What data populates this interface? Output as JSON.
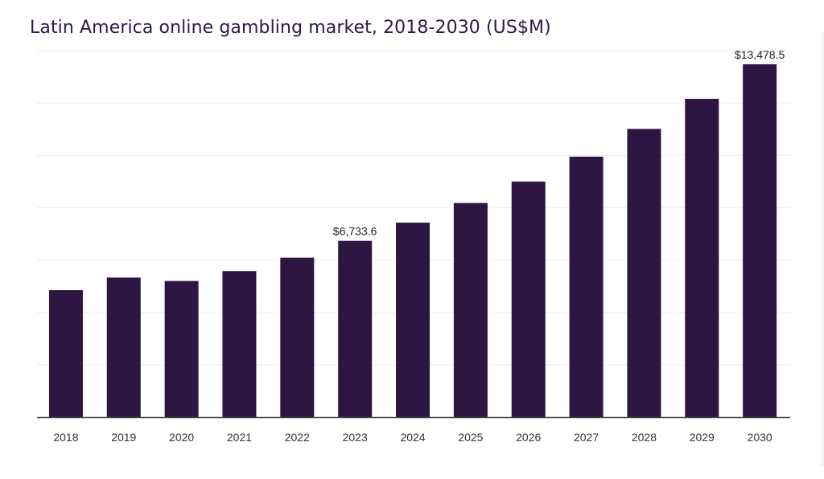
{
  "title": "Latin America online gambling market, 2018-2030 (US$M)",
  "chart_data": {
    "type": "bar",
    "title": "Latin America online gambling market, 2018-2030 (US$M)",
    "xlabel": "",
    "ylabel": "",
    "categories": [
      "2018",
      "2019",
      "2020",
      "2021",
      "2022",
      "2023",
      "2024",
      "2025",
      "2026",
      "2027",
      "2028",
      "2029",
      "2030"
    ],
    "values": [
      4850,
      5330,
      5200,
      5580,
      6090,
      6733.6,
      7430,
      8180,
      9000,
      9950,
      11010,
      12160,
      13478.5
    ],
    "data_labels": [
      {
        "category": "2023",
        "text": "$6,733.6"
      },
      {
        "category": "2030",
        "text": "$13,478.5"
      }
    ],
    "ylim": [
      0,
      14000
    ],
    "grid": true,
    "legend": "none",
    "colors": {
      "bar": "#2e1643",
      "grid": "#eeeeee",
      "axis": "#444444",
      "title": "#2e1a47"
    }
  }
}
